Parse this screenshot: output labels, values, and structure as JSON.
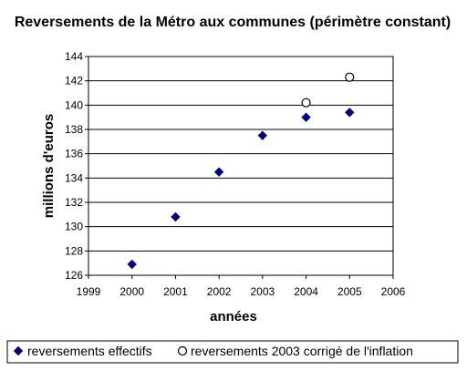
{
  "chart_data": {
    "type": "scatter",
    "title": "Reversements de la Métro aux communes (périmètre constant)",
    "xlabel": "années",
    "ylabel": "millions d'euros",
    "xlim": [
      1999,
      2006
    ],
    "ylim": [
      126,
      144
    ],
    "xticks": [
      "1999",
      "2000",
      "2001",
      "2002",
      "2003",
      "2004",
      "2005",
      "2006"
    ],
    "yticks": [
      "126",
      "128",
      "130",
      "132",
      "134",
      "136",
      "138",
      "140",
      "142",
      "144"
    ],
    "grid": "horizontal",
    "legend_position": "bottom",
    "series": [
      {
        "name": "reversements effectifs",
        "marker": "diamond",
        "color": "#000080",
        "points": [
          [
            2000,
            126.9
          ],
          [
            2001,
            130.8
          ],
          [
            2002,
            134.5
          ],
          [
            2003,
            137.5
          ],
          [
            2004,
            139.0
          ],
          [
            2005,
            139.4
          ]
        ]
      },
      {
        "name": "reversements 2003 corrigé de l'inflation",
        "marker": "circle-open",
        "color": "#000000",
        "points": [
          [
            2004,
            140.2
          ],
          [
            2005,
            142.3
          ]
        ]
      }
    ]
  }
}
